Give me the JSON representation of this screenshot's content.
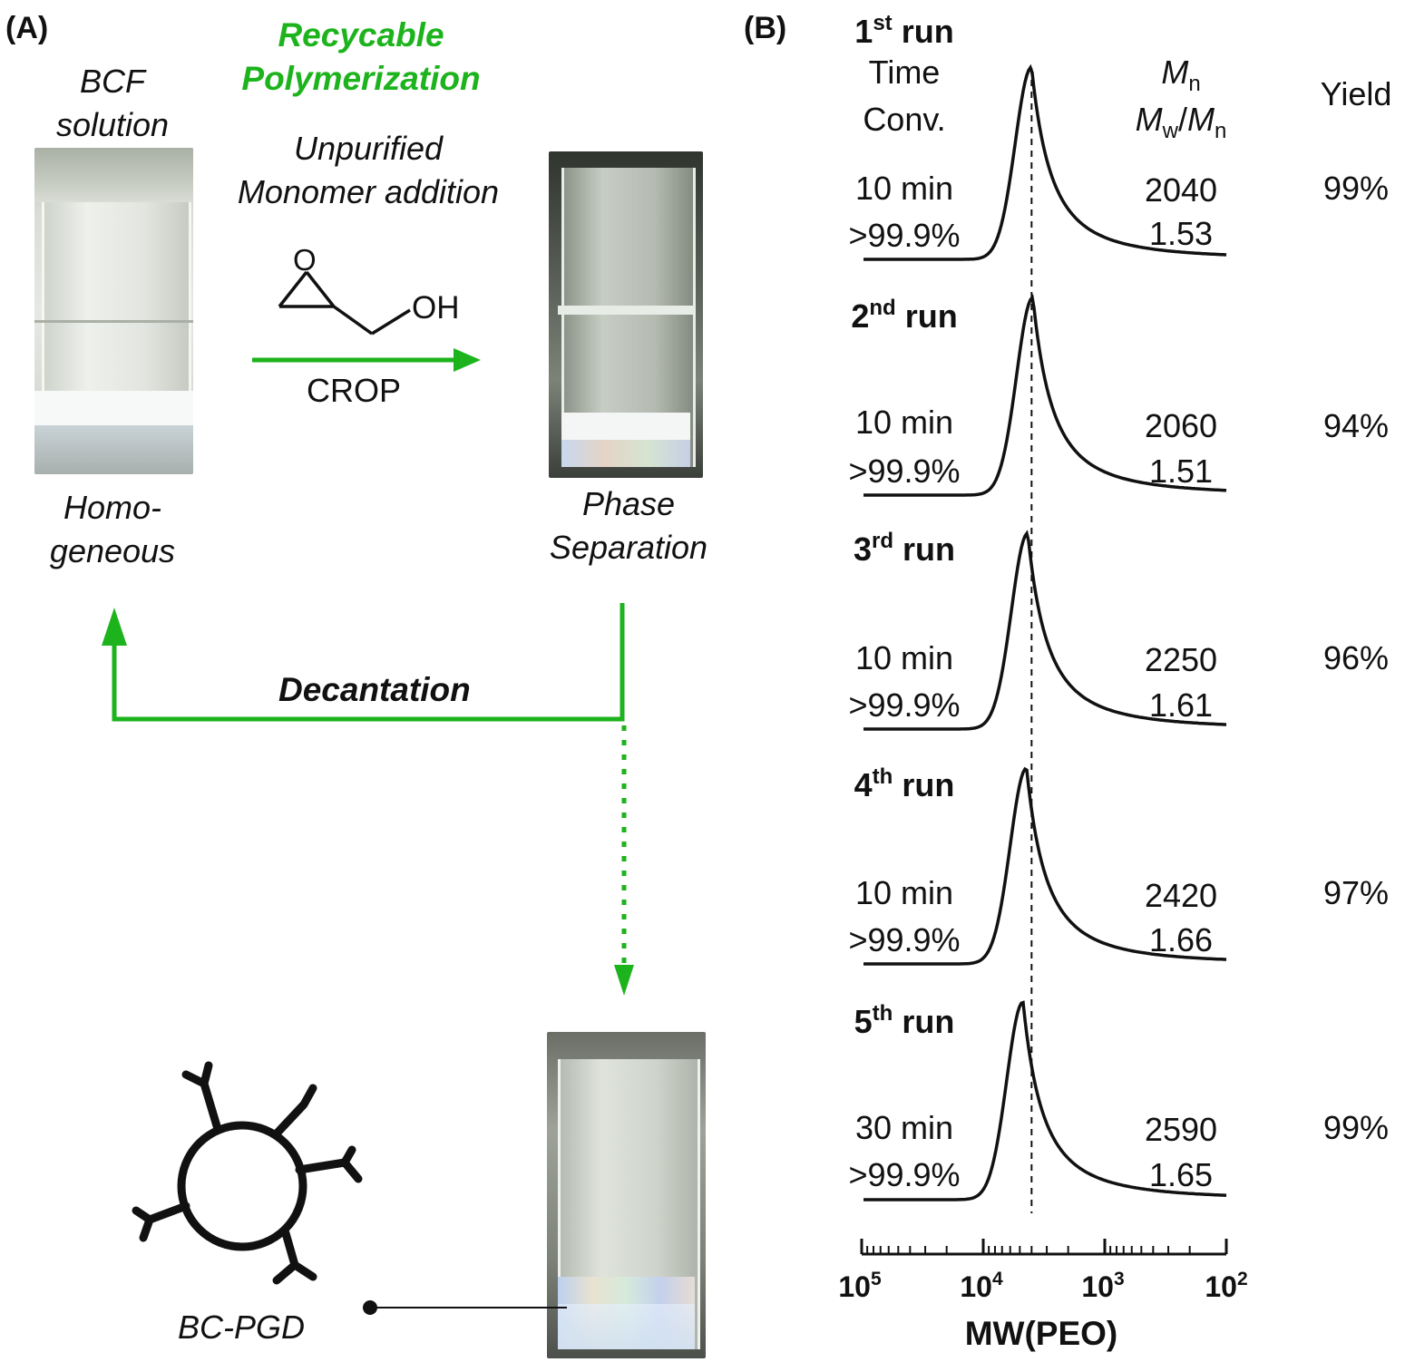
{
  "panel_a": {
    "label": "(A)",
    "bcf_line1": "BCF",
    "bcf_line2": "solution",
    "title_line1": "Recycable",
    "title_line2": "Polymerization",
    "monomer_line1": "Unpurified",
    "monomer_line2": "Monomer addition",
    "oxygen_label": "O",
    "oh_label": "OH",
    "crop_label": "CROP",
    "homo_line1": "Homo-",
    "homo_line2": "geneous",
    "phase_line1": "Phase",
    "phase_line2": "Separation",
    "decantation_label": "Decantation",
    "catalyst_label": "BC-PGD",
    "colors": {
      "arrow_green": "#1db31d"
    }
  },
  "panel_b": {
    "label": "(B)",
    "header_time": "Time",
    "header_conv": "Conv.",
    "header_mn": "M",
    "header_mn_sub": "n",
    "header_mw": "M",
    "header_mw_sub": "w",
    "header_slash": "/",
    "header_mn2": "M",
    "header_mn2_sub": "n",
    "header_yield": "Yield",
    "xlabel": "MW(PEO)",
    "tick_base": "10",
    "tick_exponents": [
      "5",
      "4",
      "3",
      "2"
    ]
  },
  "chart_data": {
    "type": "line",
    "xlabel": "MW(PEO)",
    "x_scale": "log",
    "x_axis_reversed": true,
    "xlim": [
      100000,
      100
    ],
    "ticks": [
      100000,
      10000,
      1000,
      100
    ],
    "series": [
      {
        "name": "1st run",
        "run_num": "1",
        "run_sup": "st",
        "run_word": "run",
        "time": "10 min",
        "conv": ">99.9%",
        "Mn": "2040",
        "dispersity": "1.53",
        "yield": "99%",
        "peak_mw": 4000
      },
      {
        "name": "2nd run",
        "run_num": "2",
        "run_sup": "nd",
        "run_word": "run",
        "time": "10 min",
        "conv": ">99.9%",
        "Mn": "2060",
        "dispersity": "1.51",
        "yield": "94%",
        "peak_mw": 3900
      },
      {
        "name": "3rd run",
        "run_num": "3",
        "run_sup": "rd",
        "run_word": "run",
        "time": "10 min",
        "conv": ">99.9%",
        "Mn": "2250",
        "dispersity": "1.61",
        "yield": "96%",
        "peak_mw": 4300
      },
      {
        "name": "4th run",
        "run_num": "4",
        "run_sup": "th",
        "run_word": "run",
        "time": "10 min",
        "conv": ">99.9%",
        "Mn": "2420",
        "dispersity": "1.66",
        "yield": "97%",
        "peak_mw": 4400
      },
      {
        "name": "5th run",
        "run_num": "5",
        "run_sup": "th",
        "run_word": "run",
        "time": "30 min",
        "conv": ">99.9%",
        "Mn": "2590",
        "dispersity": "1.65",
        "yield": "99%",
        "peak_mw": 4700
      }
    ]
  }
}
